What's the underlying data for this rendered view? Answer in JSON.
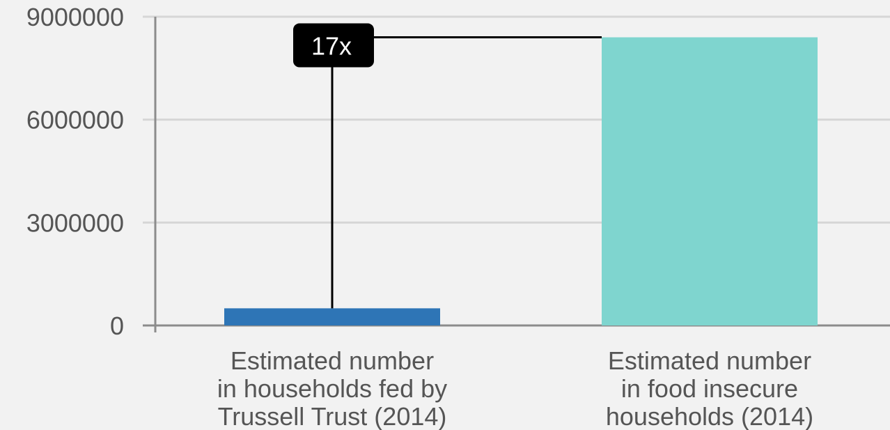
{
  "chart_data": {
    "type": "bar",
    "title": "",
    "xlabel": "",
    "ylabel": "",
    "ylim": [
      0,
      9000000
    ],
    "yticks": [
      0,
      3000000,
      6000000,
      9000000
    ],
    "ytick_labels": [
      "0",
      "3000000",
      "6000000",
      "9000000"
    ],
    "grid": true,
    "categories": [
      [
        "Estimated number",
        "in households fed by",
        "Trussell Trust (2014)"
      ],
      [
        "Estimated number",
        "in food insecure",
        "households (2014)"
      ]
    ],
    "values": [
      500000,
      8400000
    ],
    "bar_colors": [
      "#2e75b6",
      "#7fd5cf"
    ],
    "annotation": {
      "text": "17x",
      "from_category": 0,
      "to_category": 1
    }
  },
  "colors": {
    "background": "#f2f2f2",
    "grid": "#d6d6d6",
    "axis": "#8c8c8c",
    "label": "#555555",
    "annotation_box": "#000000",
    "annotation_line": "#000000"
  }
}
